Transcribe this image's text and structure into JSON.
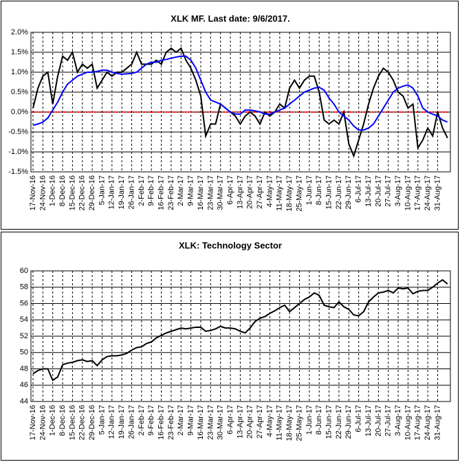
{
  "chart_data": [
    {
      "type": "line",
      "title": "XLK MF. Last date: 9/6/2017.",
      "categories": [
        "17-Nov-16",
        null,
        "24-Nov-16",
        null,
        "1-Dec-16",
        null,
        "8-Dec-16",
        null,
        "15-Dec-16",
        null,
        "22-Dec-16",
        null,
        "29-Dec-16",
        null,
        "5-Jan-17",
        null,
        "12-Jan-17",
        null,
        "19-Jan-17",
        null,
        "26-Jan-17",
        null,
        "2-Feb-17",
        null,
        "9-Feb-17",
        null,
        "16-Feb-17",
        null,
        "23-Feb-17",
        null,
        "2-Mar-17",
        null,
        "9-Mar-17",
        null,
        "16-Mar-17",
        null,
        "23-Mar-17",
        null,
        "30-Mar-17",
        null,
        "6-Apr-17",
        null,
        "13-Apr-17",
        null,
        "20-Apr-17",
        null,
        "27-Apr-17",
        null,
        "4-May-17",
        null,
        "11-May-17",
        null,
        "18-May-17",
        null,
        "25-May-17",
        null,
        "1-Jun-17",
        null,
        "8-Jun-17",
        null,
        "15-Jun-17",
        null,
        "22-Jun-17",
        null,
        "29-Jun-17",
        null,
        "6-Jul-17",
        null,
        "13-Jul-17",
        null,
        "20-Jul-17",
        null,
        "27-Jul-17",
        null,
        "3-Aug-17",
        null,
        "10-Aug-17",
        null,
        "17-Aug-17",
        null,
        "24-Aug-17",
        null,
        "31-Aug-17",
        null,
        null
      ],
      "series": [
        {
          "color": "#000000",
          "values": [
            0.1,
            0.6,
            0.9,
            1.0,
            0.2,
            0.9,
            1.4,
            1.3,
            1.5,
            1.0,
            1.2,
            1.1,
            1.2,
            0.6,
            0.8,
            1.0,
            0.9,
            1.0,
            1.0,
            1.1,
            1.2,
            1.5,
            1.2,
            1.2,
            1.2,
            1.3,
            1.2,
            1.5,
            1.6,
            1.5,
            1.6,
            1.3,
            1.1,
            0.8,
            0.4,
            -0.6,
            -0.3,
            -0.3,
            0.2,
            0.1,
            0.0,
            -0.1,
            -0.3,
            -0.1,
            0.0,
            -0.1,
            -0.3,
            0.0,
            -0.1,
            0.0,
            0.2,
            0.1,
            0.6,
            0.8,
            0.6,
            0.8,
            0.9,
            0.9,
            0.5,
            -0.2,
            -0.3,
            -0.2,
            -0.3,
            0.0,
            -0.8,
            -1.1,
            -0.7,
            -0.3,
            0.2,
            0.6,
            0.9,
            1.1,
            1.0,
            0.8,
            0.5,
            0.4,
            0.1,
            0.2,
            -0.9,
            -0.7,
            -0.4,
            -0.6,
            0.0,
            -0.4,
            -0.65
          ]
        },
        {
          "color": "#0000ff",
          "values": [
            -0.33,
            -0.3,
            -0.25,
            -0.15,
            0.05,
            0.25,
            0.5,
            0.7,
            0.8,
            0.9,
            0.95,
            1.0,
            1.0,
            1.02,
            1.05,
            1.05,
            1.0,
            0.97,
            0.95,
            0.96,
            0.97,
            1.0,
            1.1,
            1.2,
            1.25,
            1.25,
            1.3,
            1.32,
            1.35,
            1.38,
            1.4,
            1.4,
            1.3,
            1.1,
            0.8,
            0.5,
            0.3,
            0.25,
            0.2,
            0.1,
            0.0,
            -0.05,
            -0.05,
            0.05,
            0.05,
            0.03,
            0.0,
            -0.05,
            -0.05,
            0.0,
            0.05,
            0.1,
            0.2,
            0.3,
            0.4,
            0.5,
            0.55,
            0.6,
            0.62,
            0.55,
            0.35,
            0.2,
            0.0,
            -0.1,
            -0.2,
            -0.35,
            -0.45,
            -0.45,
            -0.4,
            -0.3,
            -0.1,
            0.1,
            0.3,
            0.5,
            0.6,
            0.65,
            0.68,
            0.6,
            0.4,
            0.1,
            0.0,
            -0.05,
            -0.1,
            -0.2,
            -0.25
          ]
        }
      ],
      "reference_line": {
        "value": 0,
        "color": "#ff0000"
      },
      "ylim": [
        -1.5,
        2.0
      ],
      "yticks": [
        {
          "value": -1.5,
          "label": "-1.5%"
        },
        {
          "value": -1.0,
          "label": "-1.0%"
        },
        {
          "value": -0.5,
          "label": "-0.5%"
        },
        {
          "value": 0,
          "label": "0.0%"
        },
        {
          "value": 0.5,
          "label": "0.5%"
        },
        {
          "value": 1.0,
          "label": "1.0%"
        },
        {
          "value": 1.5,
          "label": "1.5%"
        },
        {
          "value": 2.0,
          "label": "2.0%"
        }
      ],
      "grid": true
    },
    {
      "type": "line",
      "title": "XLK: Technology Sector",
      "categories": [
        "17-Nov-16",
        null,
        "24-Nov-16",
        null,
        "1-Dec-16",
        null,
        "8-Dec-16",
        null,
        "15-Dec-16",
        null,
        "22-Dec-16",
        null,
        "29-Dec-16",
        null,
        "5-Jan-17",
        null,
        "12-Jan-17",
        null,
        "19-Jan-17",
        null,
        "26-Jan-17",
        null,
        "2-Feb-17",
        null,
        "9-Feb-17",
        null,
        "16-Feb-17",
        null,
        "23-Feb-17",
        null,
        "2-Mar-17",
        null,
        "9-Mar-17",
        null,
        "16-Mar-17",
        null,
        "23-Mar-17",
        null,
        "30-Mar-17",
        null,
        "6-Apr-17",
        null,
        "13-Apr-17",
        null,
        "20-Apr-17",
        null,
        "27-Apr-17",
        null,
        "4-May-17",
        null,
        "11-May-17",
        null,
        "18-May-17",
        null,
        "25-May-17",
        null,
        "1-Jun-17",
        null,
        "8-Jun-17",
        null,
        "15-Jun-17",
        null,
        "22-Jun-17",
        null,
        "29-Jun-17",
        null,
        "6-Jul-17",
        null,
        "13-Jul-17",
        null,
        "20-Jul-17",
        null,
        "27-Jul-17",
        null,
        "3-Aug-17",
        null,
        "10-Aug-17",
        null,
        "17-Aug-17",
        null,
        "24-Aug-17",
        null,
        "31-Aug-17",
        null,
        null
      ],
      "series": [
        {
          "color": "#000000",
          "values": [
            47.4,
            47.8,
            48.0,
            48.0,
            46.6,
            47.0,
            48.5,
            48.7,
            48.8,
            49.0,
            49.1,
            48.9,
            49.0,
            48.4,
            49.1,
            49.5,
            49.6,
            49.6,
            49.7,
            49.9,
            50.3,
            50.6,
            50.7,
            51.1,
            51.3,
            51.8,
            52.1,
            52.4,
            52.6,
            52.8,
            53.0,
            52.9,
            53.0,
            53.1,
            53.1,
            52.6,
            52.7,
            52.9,
            53.2,
            53.0,
            53.0,
            52.9,
            52.6,
            52.4,
            53.0,
            53.8,
            54.2,
            54.4,
            54.8,
            55.1,
            55.5,
            55.8,
            55.0,
            55.5,
            56.0,
            56.5,
            56.8,
            57.3,
            57.0,
            55.8,
            55.6,
            55.5,
            56.2,
            55.6,
            55.3,
            54.6,
            54.5,
            55.0,
            56.2,
            56.8,
            57.3,
            57.4,
            57.6,
            57.3,
            57.9,
            57.8,
            57.9,
            57.2,
            57.5,
            57.6,
            57.6,
            58.0,
            58.5,
            58.9,
            58.4
          ]
        }
      ],
      "ylim": [
        44,
        60
      ],
      "yticks": [
        44,
        46,
        48,
        50,
        52,
        54,
        56,
        58,
        60
      ],
      "grid": true
    }
  ]
}
